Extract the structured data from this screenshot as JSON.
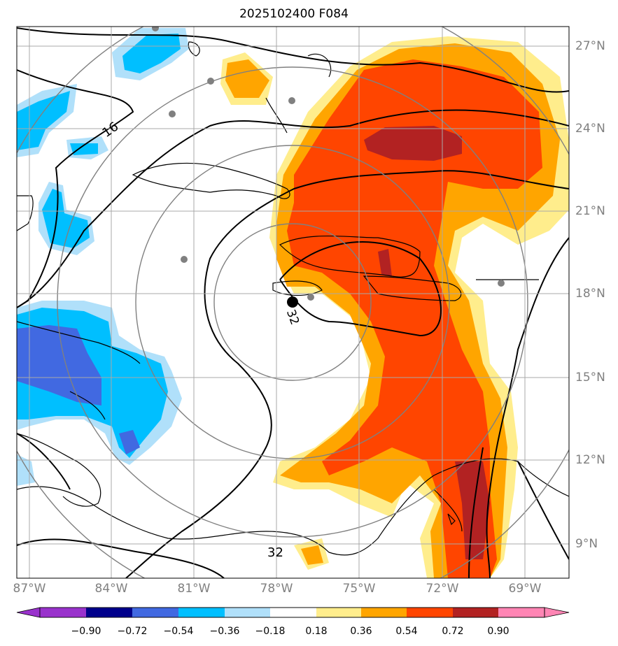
{
  "title": "2025102400 F084",
  "map": {
    "lat_labels": [
      "27°N",
      "24°N",
      "21°N",
      "18°N",
      "15°N",
      "12°N",
      "9°N"
    ],
    "lon_labels": [
      "87°W",
      "84°W",
      "81°W",
      "78°W",
      "75°W",
      "72°W",
      "69°W"
    ],
    "contour_labels": [
      "16",
      "32",
      "32"
    ],
    "storm_center": {
      "lon": -77.5,
      "lat": 17.8
    },
    "range_rings_deg": [
      3,
      6,
      9,
      12
    ]
  },
  "colorbar": {
    "ticks": [
      "−0.90",
      "−0.72",
      "−0.54",
      "−0.36",
      "−0.18",
      "0.18",
      "0.36",
      "0.54",
      "0.72",
      "0.90"
    ],
    "colors": [
      "#9932cc",
      "#00008b",
      "#4169e1",
      "#00bfff",
      "#b0e0fa",
      "#ffffff",
      "#ffed8c",
      "#ffa500",
      "#ff4500",
      "#b22222",
      "#ff85b4"
    ]
  }
}
